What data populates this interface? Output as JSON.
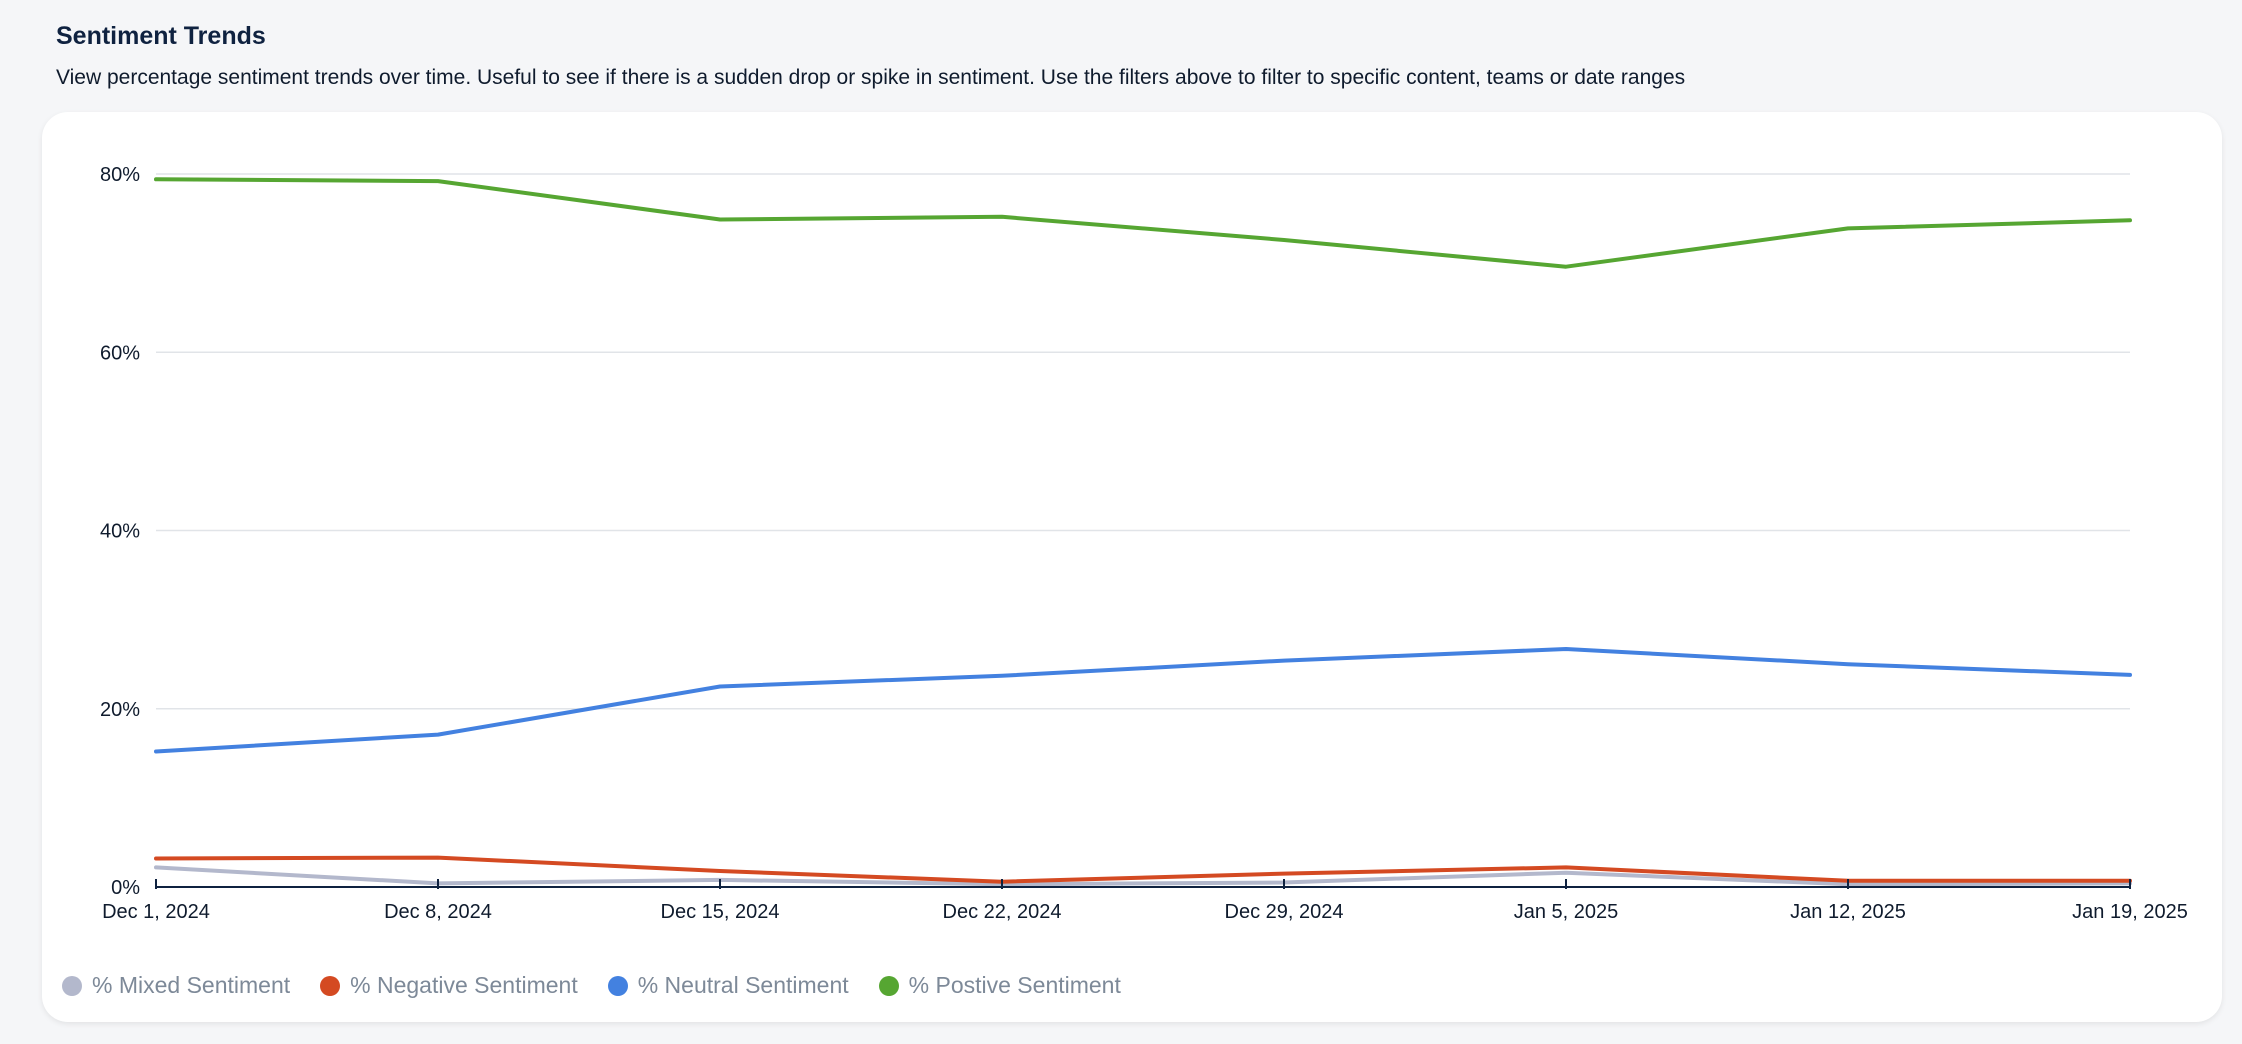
{
  "header": {
    "title": "Sentiment Trends",
    "description": "View percentage sentiment trends over time. Useful to see if there is a sudden drop or spike in sentiment. Use the filters above to filter to specific content, teams or date ranges"
  },
  "chart_data": {
    "type": "line",
    "title": "",
    "xlabel": "",
    "ylabel": "",
    "x": [
      "Dec 1, 2024",
      "Dec 8, 2024",
      "Dec 15, 2024",
      "Dec 22, 2024",
      "Dec 29, 2024",
      "Jan 5, 2025",
      "Jan 12, 2025",
      "Jan 19, 2025"
    ],
    "ylim": [
      0,
      80
    ],
    "yticks": [
      0,
      20,
      40,
      60,
      80
    ],
    "ytick_labels": [
      "0%",
      "20%",
      "40%",
      "60%",
      "80%"
    ],
    "grid": true,
    "legend_position": "bottom-left",
    "series": [
      {
        "name": "% Mixed Sentiment",
        "color": "#b3b8cc",
        "values": [
          2.2,
          0.4,
          0.8,
          0.3,
          0.5,
          1.6,
          0.3,
          0.4
        ]
      },
      {
        "name": "% Negative Sentiment",
        "color": "#d44a22",
        "values": [
          3.2,
          3.3,
          1.8,
          0.6,
          1.5,
          2.2,
          0.7,
          0.7
        ]
      },
      {
        "name": "% Neutral Sentiment",
        "color": "#4381e0",
        "values": [
          15.2,
          17.1,
          22.5,
          23.7,
          25.4,
          26.7,
          25.0,
          23.8
        ]
      },
      {
        "name": "% Postive Sentiment",
        "color": "#56a632",
        "values": [
          79.4,
          79.2,
          74.9,
          75.2,
          72.6,
          69.6,
          73.9,
          74.8
        ]
      }
    ]
  }
}
